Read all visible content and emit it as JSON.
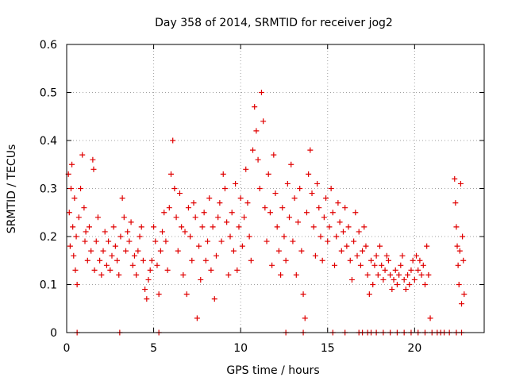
{
  "chart_data": {
    "type": "scatter",
    "title": "Day 358 of 2014, SRMTID for receiver jog2",
    "xlabel": "GPS time / hours",
    "ylabel": "SRMTID / TECUs",
    "xlim": [
      0,
      24
    ],
    "ylim": [
      0,
      0.6
    ],
    "xticks": [
      0,
      5,
      10,
      15,
      20
    ],
    "xtick_labels": [
      "0",
      "5",
      "10",
      "15",
      "20"
    ],
    "yticks": [
      0,
      0.1,
      0.2,
      0.3,
      0.4,
      0.5,
      0.6
    ],
    "ytick_labels": [
      "0",
      "0.1",
      "0.2",
      "0.3",
      "0.4",
      "0.5",
      "0.6"
    ],
    "grid": true,
    "marker": "plus",
    "color": "#e00000",
    "series": [
      {
        "name": "SRMTID",
        "points": [
          [
            0.1,
            0.33
          ],
          [
            0.15,
            0.25
          ],
          [
            0.2,
            0.18
          ],
          [
            0.25,
            0.3
          ],
          [
            0.3,
            0.35
          ],
          [
            0.35,
            0.22
          ],
          [
            0.4,
            0.16
          ],
          [
            0.45,
            0.28
          ],
          [
            0.5,
            0.13
          ],
          [
            0.55,
            0.2
          ],
          [
            0.6,
            0.1
          ],
          [
            0.7,
            0.24
          ],
          [
            0.8,
            0.3
          ],
          [
            0.9,
            0.37
          ],
          [
            1.0,
            0.26
          ],
          [
            1.05,
            0.19
          ],
          [
            1.1,
            0.21
          ],
          [
            1.2,
            0.15
          ],
          [
            1.3,
            0.22
          ],
          [
            1.4,
            0.17
          ],
          [
            1.5,
            0.36
          ],
          [
            1.55,
            0.34
          ],
          [
            1.6,
            0.13
          ],
          [
            1.7,
            0.19
          ],
          [
            1.8,
            0.24
          ],
          [
            1.9,
            0.15
          ],
          [
            2.0,
            0.12
          ],
          [
            2.1,
            0.17
          ],
          [
            2.2,
            0.21
          ],
          [
            2.3,
            0.14
          ],
          [
            2.4,
            0.19
          ],
          [
            2.5,
            0.13
          ],
          [
            2.6,
            0.16
          ],
          [
            2.7,
            0.22
          ],
          [
            2.8,
            0.18
          ],
          [
            2.9,
            0.15
          ],
          [
            3.0,
            0.12
          ],
          [
            3.1,
            0.2
          ],
          [
            3.2,
            0.28
          ],
          [
            3.3,
            0.24
          ],
          [
            3.4,
            0.17
          ],
          [
            3.5,
            0.21
          ],
          [
            3.6,
            0.19
          ],
          [
            3.7,
            0.23
          ],
          [
            3.8,
            0.14
          ],
          [
            3.9,
            0.16
          ],
          [
            4.0,
            0.12
          ],
          [
            4.1,
            0.17
          ],
          [
            4.2,
            0.2
          ],
          [
            4.3,
            0.22
          ],
          [
            4.4,
            0.15
          ],
          [
            4.5,
            0.09
          ],
          [
            4.6,
            0.07
          ],
          [
            4.7,
            0.11
          ],
          [
            4.8,
            0.13
          ],
          [
            4.9,
            0.15
          ],
          [
            5.0,
            0.22
          ],
          [
            5.1,
            0.19
          ],
          [
            5.2,
            0.14
          ],
          [
            5.3,
            0.08
          ],
          [
            5.4,
            0.17
          ],
          [
            5.5,
            0.21
          ],
          [
            5.6,
            0.25
          ],
          [
            5.7,
            0.19
          ],
          [
            5.8,
            0.13
          ],
          [
            5.9,
            0.26
          ],
          [
            6.0,
            0.33
          ],
          [
            6.1,
            0.4
          ],
          [
            6.2,
            0.3
          ],
          [
            6.3,
            0.24
          ],
          [
            6.4,
            0.17
          ],
          [
            6.5,
            0.29
          ],
          [
            6.6,
            0.22
          ],
          [
            6.7,
            0.12
          ],
          [
            6.8,
            0.21
          ],
          [
            6.9,
            0.08
          ],
          [
            7.0,
            0.26
          ],
          [
            7.1,
            0.2
          ],
          [
            7.2,
            0.15
          ],
          [
            7.3,
            0.27
          ],
          [
            7.4,
            0.24
          ],
          [
            7.5,
            0.03
          ],
          [
            7.6,
            0.18
          ],
          [
            7.7,
            0.11
          ],
          [
            7.8,
            0.22
          ],
          [
            7.9,
            0.25
          ],
          [
            8.0,
            0.15
          ],
          [
            8.1,
            0.19
          ],
          [
            8.2,
            0.28
          ],
          [
            8.3,
            0.13
          ],
          [
            8.4,
            0.22
          ],
          [
            8.5,
            0.07
          ],
          [
            8.6,
            0.16
          ],
          [
            8.7,
            0.24
          ],
          [
            8.8,
            0.27
          ],
          [
            8.9,
            0.19
          ],
          [
            9.0,
            0.33
          ],
          [
            9.1,
            0.3
          ],
          [
            9.2,
            0.23
          ],
          [
            9.3,
            0.12
          ],
          [
            9.4,
            0.2
          ],
          [
            9.5,
            0.25
          ],
          [
            9.6,
            0.17
          ],
          [
            9.7,
            0.31
          ],
          [
            9.8,
            0.13
          ],
          [
            9.9,
            0.22
          ],
          [
            10.0,
            0.28
          ],
          [
            10.1,
            0.18
          ],
          [
            10.2,
            0.24
          ],
          [
            10.3,
            0.34
          ],
          [
            10.4,
            0.27
          ],
          [
            10.5,
            0.2
          ],
          [
            10.6,
            0.15
          ],
          [
            10.7,
            0.38
          ],
          [
            10.8,
            0.47
          ],
          [
            10.9,
            0.42
          ],
          [
            11.0,
            0.36
          ],
          [
            11.1,
            0.3
          ],
          [
            11.2,
            0.5
          ],
          [
            11.3,
            0.44
          ],
          [
            11.4,
            0.26
          ],
          [
            11.5,
            0.19
          ],
          [
            11.6,
            0.33
          ],
          [
            11.7,
            0.25
          ],
          [
            11.8,
            0.14
          ],
          [
            11.9,
            0.37
          ],
          [
            12.0,
            0.29
          ],
          [
            12.1,
            0.22
          ],
          [
            12.2,
            0.17
          ],
          [
            12.3,
            0.12
          ],
          [
            12.4,
            0.26
          ],
          [
            12.5,
            0.2
          ],
          [
            12.6,
            0.15
          ],
          [
            12.7,
            0.31
          ],
          [
            12.8,
            0.24
          ],
          [
            12.9,
            0.35
          ],
          [
            13.0,
            0.19
          ],
          [
            13.1,
            0.28
          ],
          [
            13.2,
            0.12
          ],
          [
            13.3,
            0.23
          ],
          [
            13.4,
            0.3
          ],
          [
            13.5,
            0.17
          ],
          [
            13.6,
            0.08
          ],
          [
            13.7,
            0.03
          ],
          [
            13.8,
            0.25
          ],
          [
            13.9,
            0.33
          ],
          [
            14.0,
            0.38
          ],
          [
            14.1,
            0.29
          ],
          [
            14.2,
            0.22
          ],
          [
            14.3,
            0.16
          ],
          [
            14.4,
            0.31
          ],
          [
            14.5,
            0.26
          ],
          [
            14.6,
            0.2
          ],
          [
            14.7,
            0.15
          ],
          [
            14.8,
            0.24
          ],
          [
            14.9,
            0.28
          ],
          [
            15.0,
            0.19
          ],
          [
            15.1,
            0.22
          ],
          [
            15.2,
            0.3
          ],
          [
            15.3,
            0.25
          ],
          [
            15.4,
            0.14
          ],
          [
            15.5,
            0.2
          ],
          [
            15.6,
            0.27
          ],
          [
            15.7,
            0.23
          ],
          [
            15.8,
            0.17
          ],
          [
            15.9,
            0.21
          ],
          [
            16.0,
            0.26
          ],
          [
            16.1,
            0.18
          ],
          [
            16.2,
            0.22
          ],
          [
            16.3,
            0.15
          ],
          [
            16.4,
            0.11
          ],
          [
            16.5,
            0.19
          ],
          [
            16.6,
            0.25
          ],
          [
            16.7,
            0.16
          ],
          [
            16.8,
            0.21
          ],
          [
            16.9,
            0.14
          ],
          [
            17.0,
            0.17
          ],
          [
            17.1,
            0.22
          ],
          [
            17.2,
            0.18
          ],
          [
            17.3,
            0.12
          ],
          [
            17.4,
            0.08
          ],
          [
            17.5,
            0.15
          ],
          [
            17.6,
            0.1
          ],
          [
            17.7,
            0.14
          ],
          [
            17.8,
            0.16
          ],
          [
            17.9,
            0.12
          ],
          [
            18.0,
            0.18
          ],
          [
            18.1,
            0.14
          ],
          [
            18.2,
            0.11
          ],
          [
            18.3,
            0.13
          ],
          [
            18.4,
            0.16
          ],
          [
            18.5,
            0.15
          ],
          [
            18.6,
            0.12
          ],
          [
            18.7,
            0.09
          ],
          [
            18.8,
            0.11
          ],
          [
            18.9,
            0.13
          ],
          [
            19.0,
            0.1
          ],
          [
            19.1,
            0.12
          ],
          [
            19.2,
            0.14
          ],
          [
            19.3,
            0.16
          ],
          [
            19.4,
            0.11
          ],
          [
            19.5,
            0.09
          ],
          [
            19.6,
            0.12
          ],
          [
            19.7,
            0.1
          ],
          [
            19.8,
            0.13
          ],
          [
            19.9,
            0.15
          ],
          [
            20.0,
            0.11
          ],
          [
            20.1,
            0.16
          ],
          [
            20.2,
            0.13
          ],
          [
            20.3,
            0.15
          ],
          [
            20.4,
            0.12
          ],
          [
            20.5,
            0.14
          ],
          [
            20.6,
            0.1
          ],
          [
            20.7,
            0.18
          ],
          [
            20.8,
            0.12
          ],
          [
            20.9,
            0.03
          ],
          [
            22.3,
            0.32
          ],
          [
            22.35,
            0.27
          ],
          [
            22.4,
            0.22
          ],
          [
            22.45,
            0.18
          ],
          [
            22.5,
            0.14
          ],
          [
            22.55,
            0.1
          ],
          [
            22.6,
            0.17
          ],
          [
            22.65,
            0.31
          ],
          [
            22.7,
            0.06
          ],
          [
            22.75,
            0.2
          ],
          [
            22.8,
            0.15
          ],
          [
            22.85,
            0.08
          ],
          [
            0.6,
            0.0
          ],
          [
            3.05,
            0.0
          ],
          [
            5.3,
            0.0
          ],
          [
            12.6,
            0.0
          ],
          [
            13.6,
            0.0
          ],
          [
            15.3,
            0.0
          ],
          [
            16.0,
            0.0
          ],
          [
            16.8,
            0.0
          ],
          [
            17.0,
            0.0
          ],
          [
            17.3,
            0.0
          ],
          [
            17.5,
            0.0
          ],
          [
            17.8,
            0.0
          ],
          [
            18.2,
            0.0
          ],
          [
            18.6,
            0.0
          ],
          [
            19.0,
            0.0
          ],
          [
            19.4,
            0.0
          ],
          [
            19.8,
            0.0
          ],
          [
            20.2,
            0.0
          ],
          [
            20.6,
            0.0
          ],
          [
            21.0,
            0.0
          ],
          [
            21.3,
            0.0
          ],
          [
            21.5,
            0.0
          ],
          [
            21.7,
            0.0
          ],
          [
            22.0,
            0.0
          ],
          [
            22.4,
            0.0
          ],
          [
            22.7,
            0.0
          ]
        ]
      }
    ]
  }
}
